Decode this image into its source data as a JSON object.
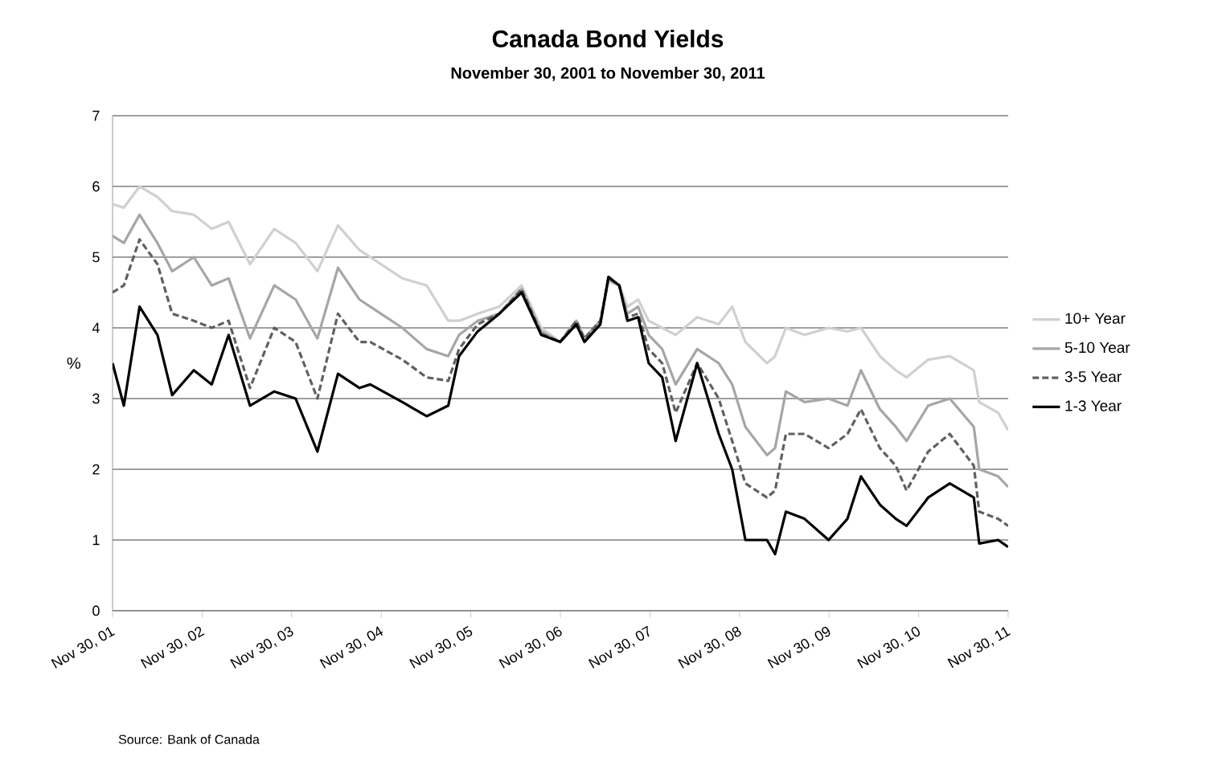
{
  "chart_data": {
    "type": "line",
    "title": "Canada Bond Yields",
    "subtitle": "November 30, 2001 to November 30, 2011",
    "ylabel": "%",
    "annotations": [
      "Source: Bank of Canada"
    ],
    "x": [
      "2001-11-30",
      "2002-01-15",
      "2002-03-20",
      "2002-06-01",
      "2002-07-31",
      "2002-10-27",
      "2003-01-08",
      "2003-03-18",
      "2003-06-13",
      "2003-09-20",
      "2003-12-16",
      "2004-03-14",
      "2004-06-06",
      "2004-09-02",
      "2004-10-16",
      "2005-02-24",
      "2005-06-03",
      "2005-08-30",
      "2005-10-13",
      "2005-12-28",
      "2006-03-26",
      "2006-06-25",
      "2006-09-13",
      "2006-11-29",
      "2007-02-03",
      "2007-03-08",
      "2007-05-12",
      "2007-06-14",
      "2007-07-28",
      "2007-08-30",
      "2007-10-13",
      "2007-11-25",
      "2008-01-19",
      "2008-03-14",
      "2008-06-10",
      "2008-09-06",
      "2008-10-31",
      "2008-12-24",
      "2009-03-22",
      "2009-04-24",
      "2009-06-07",
      "2009-08-22",
      "2009-11-28",
      "2010-02-13",
      "2010-04-09",
      "2010-06-25",
      "2010-08-29",
      "2010-10-12",
      "2011-01-08",
      "2011-04-06",
      "2011-07-13",
      "2011-08-04",
      "2011-10-20",
      "2011-11-30"
    ],
    "series": [
      {
        "name": "10+ Year",
        "color": "#d0d0d0",
        "line_style": "solid",
        "values": [
          5.75,
          5.7,
          6.0,
          5.85,
          5.65,
          5.6,
          5.4,
          5.5,
          4.9,
          5.4,
          5.2,
          4.8,
          5.45,
          5.1,
          5.0,
          4.7,
          4.6,
          4.1,
          4.1,
          4.2,
          4.3,
          4.6,
          4.0,
          3.8,
          4.1,
          3.85,
          4.1,
          4.65,
          4.6,
          4.3,
          4.4,
          4.1,
          4.0,
          3.9,
          4.15,
          4.05,
          4.3,
          3.8,
          3.5,
          3.6,
          4.0,
          3.9,
          4.0,
          3.95,
          4.0,
          3.6,
          3.4,
          3.3,
          3.55,
          3.6,
          3.4,
          2.95,
          2.8,
          2.55
        ]
      },
      {
        "name": "5-10 Year",
        "color": "#a6a6a6",
        "line_style": "solid",
        "values": [
          5.3,
          5.2,
          5.6,
          5.2,
          4.8,
          5.0,
          4.6,
          4.7,
          3.85,
          4.6,
          4.4,
          3.85,
          4.85,
          4.4,
          4.3,
          4.0,
          3.7,
          3.6,
          3.9,
          4.1,
          4.2,
          4.55,
          3.95,
          3.8,
          4.1,
          3.85,
          4.1,
          4.7,
          4.6,
          4.2,
          4.3,
          3.9,
          3.7,
          3.2,
          3.7,
          3.5,
          3.2,
          2.6,
          2.2,
          2.3,
          3.1,
          2.95,
          3.0,
          2.9,
          3.4,
          2.85,
          2.6,
          2.4,
          2.9,
          3.0,
          2.6,
          2.0,
          1.9,
          1.75
        ]
      },
      {
        "name": "3-5 Year",
        "color": "#606060",
        "line_style": "dashed",
        "values": [
          4.5,
          4.6,
          5.25,
          4.9,
          4.2,
          4.1,
          4.0,
          4.1,
          3.15,
          4.0,
          3.8,
          3.0,
          4.2,
          3.8,
          3.8,
          3.55,
          3.3,
          3.25,
          3.7,
          4.05,
          4.2,
          4.55,
          3.92,
          3.8,
          4.1,
          3.85,
          4.1,
          4.7,
          4.6,
          4.15,
          4.2,
          3.7,
          3.5,
          2.8,
          3.5,
          3.0,
          2.4,
          1.8,
          1.6,
          1.7,
          2.5,
          2.5,
          2.3,
          2.5,
          2.85,
          2.3,
          2.05,
          1.7,
          2.25,
          2.5,
          2.05,
          1.4,
          1.3,
          1.2
        ]
      },
      {
        "name": "1-3 Year",
        "color": "#000000",
        "line_style": "solid",
        "values": [
          3.5,
          2.9,
          4.3,
          3.9,
          3.05,
          3.4,
          3.2,
          3.9,
          2.9,
          3.1,
          3.0,
          2.25,
          3.35,
          3.15,
          3.2,
          2.95,
          2.75,
          2.9,
          3.6,
          3.95,
          4.2,
          4.5,
          3.9,
          3.8,
          4.05,
          3.8,
          4.05,
          4.72,
          4.6,
          4.1,
          4.15,
          3.5,
          3.3,
          2.4,
          3.5,
          2.5,
          2.0,
          1.0,
          1.0,
          0.8,
          1.4,
          1.3,
          1.0,
          1.3,
          1.9,
          1.5,
          1.3,
          1.2,
          1.6,
          1.8,
          1.6,
          0.95,
          1.0,
          0.9
        ]
      }
    ],
    "xlim": [
      "2001-11-30",
      "2011-11-30"
    ],
    "xticks": [
      {
        "value": "2001-11-30",
        "label": "Nov 30, 01"
      },
      {
        "value": "2002-11-30",
        "label": "Nov 30, 02"
      },
      {
        "value": "2003-11-30",
        "label": "Nov 30, 03"
      },
      {
        "value": "2004-11-30",
        "label": "Nov 30, 04"
      },
      {
        "value": "2005-11-30",
        "label": "Nov 30, 05"
      },
      {
        "value": "2006-11-30",
        "label": "Nov 30, 06"
      },
      {
        "value": "2007-11-30",
        "label": "Nov 30, 07"
      },
      {
        "value": "2008-11-30",
        "label": "Nov 30, 08"
      },
      {
        "value": "2009-11-30",
        "label": "Nov 30, 09"
      },
      {
        "value": "2010-11-30",
        "label": "Nov 30, 10"
      },
      {
        "value": "2011-11-30",
        "label": "Nov 30, 11"
      }
    ],
    "ylim": [
      0,
      7
    ],
    "yticks": [
      0,
      1,
      2,
      3,
      4,
      5,
      6,
      7
    ],
    "grid": "y",
    "legend": "right",
    "marker": "none"
  }
}
